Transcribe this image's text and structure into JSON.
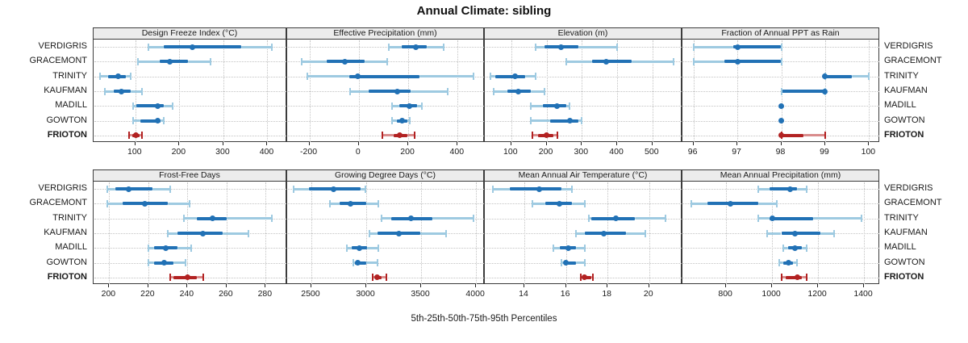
{
  "chart_data": {
    "type": "dot-interval (percentile) trellis plot",
    "title": "Annual Climate: sibling",
    "xlabel": "5th-25th-50th-75th-95th Percentiles",
    "legend_position": "none",
    "grid": "dotted",
    "layout_hint": {
      "rows": 2,
      "cols": 4,
      "station_labels": "both sides"
    },
    "stations": [
      "VERDIGRIS",
      "GRACEMONT",
      "TRINITY",
      "KAUFMAN",
      "MADILL",
      "GOWTON",
      "FRIOTON"
    ],
    "highlight_station": "FRIOTON",
    "percentiles_order": [
      5,
      25,
      50,
      75,
      95
    ],
    "colors": {
      "blue_dark": "#2171b5",
      "blue_light": "#9ecae1",
      "red_dark": "#b22222",
      "red_light": "#d98c8c",
      "strip_bg": "#ececec",
      "panel_border": "#3c3c3c",
      "gridline": "#c3c3c3"
    },
    "panels": [
      {
        "title": "Design Freeze Index (°C)",
        "ticks": [
          100,
          200,
          300,
          400
        ],
        "range": [
          5,
          445
        ],
        "values": [
          [
            130,
            165,
            230,
            340,
            410
          ],
          [
            105,
            155,
            178,
            220,
            270
          ],
          [
            20,
            38,
            60,
            78,
            90
          ],
          [
            30,
            50,
            68,
            90,
            115
          ],
          [
            95,
            102,
            150,
            165,
            185
          ],
          [
            95,
            112,
            150,
            157,
            165
          ],
          [
            85,
            93,
            102,
            110,
            115
          ]
        ]
      },
      {
        "title": "Effective Precipitation (mm)",
        "ticks": [
          -200,
          0,
          200,
          400
        ],
        "range": [
          -290,
          510
        ],
        "values": [
          [
            120,
            175,
            230,
            275,
            345
          ],
          [
            -230,
            -130,
            -55,
            25,
            115
          ],
          [
            -210,
            -40,
            -5,
            245,
            465
          ],
          [
            -35,
            40,
            155,
            210,
            360
          ],
          [
            135,
            165,
            205,
            235,
            255
          ],
          [
            135,
            155,
            175,
            195,
            205
          ],
          [
            95,
            140,
            165,
            195,
            225
          ]
        ]
      },
      {
        "title": "Elevation (m)",
        "ticks": [
          100,
          200,
          300,
          400,
          500
        ],
        "range": [
          25,
          585
        ],
        "values": [
          [
            170,
            195,
            240,
            290,
            400
          ],
          [
            255,
            330,
            370,
            440,
            560
          ],
          [
            40,
            55,
            110,
            140,
            170
          ],
          [
            50,
            90,
            120,
            155,
            195
          ],
          [
            155,
            190,
            230,
            255,
            265
          ],
          [
            155,
            210,
            265,
            290,
            300
          ],
          [
            160,
            175,
            200,
            220,
            230
          ]
        ]
      },
      {
        "title": "Fraction of Annual PPT as Rain",
        "ticks": [
          96,
          97,
          98,
          99,
          100
        ],
        "range": [
          95.75,
          100.25
        ],
        "values": [
          [
            96,
            96.9,
            97,
            98,
            98
          ],
          [
            96,
            96.7,
            97,
            98,
            98
          ],
          [
            99,
            99,
            99,
            99.6,
            100
          ],
          [
            98,
            98,
            99,
            99,
            99
          ],
          [
            98,
            98,
            98,
            98,
            98
          ],
          [
            98,
            98,
            98,
            98,
            98
          ],
          [
            98,
            98,
            98,
            98.5,
            99
          ]
        ]
      },
      {
        "title": "Frost-Free Days",
        "ticks": [
          200,
          220,
          240,
          260,
          280
        ],
        "range": [
          192,
          291
        ],
        "values": [
          [
            199,
            203,
            210,
            222,
            231
          ],
          [
            199,
            207,
            218,
            230,
            241
          ],
          [
            238,
            245,
            253,
            260,
            283
          ],
          [
            230,
            235,
            248,
            258,
            271
          ],
          [
            220,
            223,
            229,
            235,
            242
          ],
          [
            220,
            223,
            228,
            233,
            239
          ],
          [
            231,
            233,
            240,
            245,
            248
          ]
        ]
      },
      {
        "title": "Growing Degree Days (°C)",
        "ticks": [
          2500,
          3000,
          3500,
          4000
        ],
        "range": [
          2280,
          4080
        ],
        "values": [
          [
            2340,
            2480,
            2700,
            2950,
            2990
          ],
          [
            2670,
            2760,
            2860,
            3000,
            3110
          ],
          [
            3140,
            3230,
            3410,
            3600,
            3980
          ],
          [
            3030,
            3100,
            3300,
            3490,
            3730
          ],
          [
            2820,
            2870,
            2940,
            3010,
            3110
          ],
          [
            2880,
            2900,
            2920,
            3000,
            3100
          ],
          [
            3060,
            3080,
            3100,
            3140,
            3180
          ]
        ]
      },
      {
        "title": "Mean Annual Air Temperature (°C)",
        "ticks": [
          14,
          16,
          18,
          20
        ],
        "range": [
          12.1,
          21.6
        ],
        "values": [
          [
            12.5,
            13.3,
            14.7,
            15.8,
            16.3
          ],
          [
            14.4,
            15.0,
            15.7,
            16.3,
            16.9
          ],
          [
            17.1,
            17.2,
            18.4,
            19.3,
            20.8
          ],
          [
            16.5,
            16.9,
            17.8,
            18.9,
            19.8
          ],
          [
            15.4,
            15.7,
            16.1,
            16.5,
            16.9
          ],
          [
            15.8,
            15.9,
            16.0,
            16.5,
            16.9
          ],
          [
            16.7,
            16.8,
            16.9,
            17.2,
            17.3
          ]
        ]
      },
      {
        "title": "Mean Annual Precipitation (mm)",
        "ticks": [
          800,
          1000,
          1200,
          1400
        ],
        "range": [
          610,
          1470
        ],
        "values": [
          [
            940,
            990,
            1080,
            1110,
            1150
          ],
          [
            650,
            720,
            820,
            940,
            1020
          ],
          [
            940,
            990,
            1000,
            1180,
            1390
          ],
          [
            980,
            1040,
            1100,
            1210,
            1270
          ],
          [
            1050,
            1070,
            1100,
            1130,
            1150
          ],
          [
            1030,
            1050,
            1070,
            1090,
            1110
          ],
          [
            1040,
            1060,
            1110,
            1130,
            1150
          ]
        ]
      }
    ]
  }
}
